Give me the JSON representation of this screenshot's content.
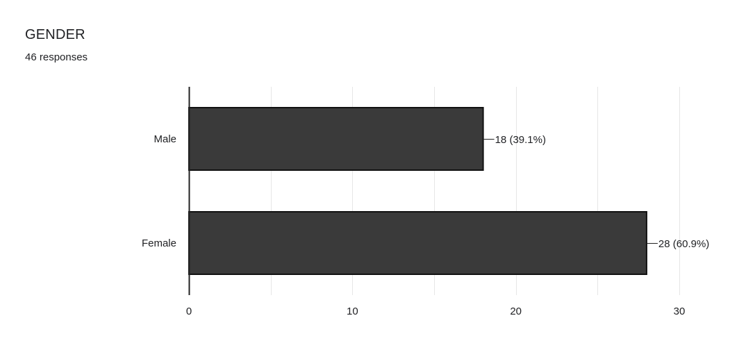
{
  "header": {
    "title": "GENDER",
    "subtitle": "46 responses"
  },
  "chart_data": {
    "type": "bar",
    "orientation": "horizontal",
    "categories": [
      "Male",
      "Female"
    ],
    "values": [
      18,
      28
    ],
    "data_labels": [
      "18 (39.1%)",
      "28 (60.9%)"
    ],
    "xlim": [
      0,
      30
    ],
    "xticks": [
      0,
      10,
      20,
      30
    ],
    "grid": true,
    "legend": "none",
    "colors": {
      "bar_fill": "#3a3a3a",
      "bar_stroke": "#111111",
      "grid": "#e6e6e6",
      "axis": "#222222"
    }
  }
}
